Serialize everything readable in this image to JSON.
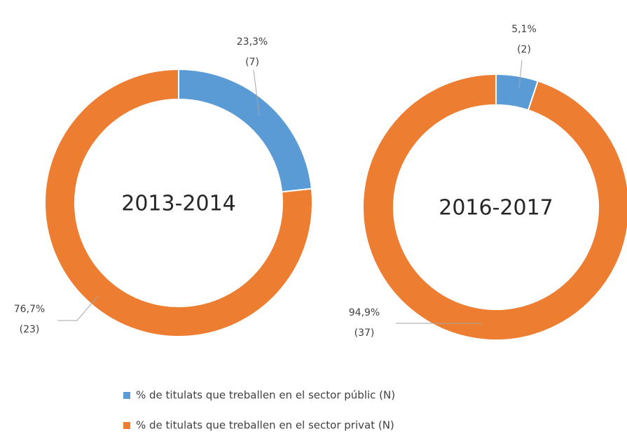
{
  "chart_data": [
    {
      "type": "donut",
      "title": "2013-2014",
      "categories": [
        "% de titulats que treballen en el sector públic (N)",
        "% de titulats que treballen en el sector privat (N)"
      ],
      "values": [
        23.3,
        76.7
      ],
      "value_labels": [
        "23,3%",
        "76,7%"
      ],
      "counts": [
        7,
        23
      ],
      "count_labels": [
        "(7)",
        "(23)"
      ],
      "colors": [
        "#5b9bd5",
        "#ed7d31"
      ]
    },
    {
      "type": "donut",
      "title": "2016-2017",
      "categories": [
        "% de titulats que treballen en el sector públic (N)",
        "% de titulats que treballen en el sector privat (N)"
      ],
      "values": [
        5.1,
        94.9
      ],
      "value_labels": [
        "5,1%",
        "94,9%"
      ],
      "counts": [
        2,
        37
      ],
      "count_labels": [
        "(2)",
        "(37)"
      ],
      "colors": [
        "#5b9bd5",
        "#ed7d31"
      ]
    }
  ]
}
